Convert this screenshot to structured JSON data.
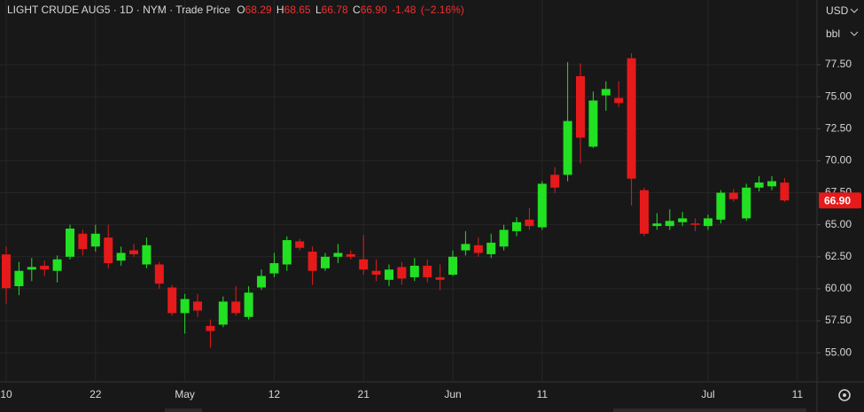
{
  "header": {
    "symbol": "LIGHT CRUDE AUG5 · 1D · NYM · Trade Price",
    "o_label": "O",
    "o_value": "68.29",
    "h_label": "H",
    "h_value": "68.65",
    "l_label": "L",
    "l_value": "66.78",
    "c_label": "C",
    "c_value": "66.90",
    "change": "-1.48",
    "change_pct": "(−2.16%)",
    "currency": "USD",
    "unit": "bbl"
  },
  "chart_data": {
    "type": "candlestick",
    "categories": [
      "10",
      null,
      null,
      null,
      null,
      null,
      null,
      "22",
      null,
      null,
      null,
      null,
      null,
      null,
      "May",
      null,
      null,
      null,
      null,
      null,
      null,
      "12",
      null,
      null,
      null,
      null,
      null,
      null,
      "21",
      null,
      null,
      null,
      null,
      null,
      null,
      "Jun",
      null,
      null,
      null,
      null,
      null,
      null,
      "11",
      null,
      null,
      null,
      null,
      null,
      null,
      null,
      null,
      null,
      null,
      null,
      null,
      "Jul",
      null,
      null,
      null,
      null,
      null,
      null,
      "11"
    ],
    "open": [
      62.68,
      60.2,
      61.5,
      61.8,
      61.4,
      62.5,
      64.3,
      63.3,
      64.0,
      62.2,
      63.0,
      61.9,
      61.9,
      60.1,
      58.1,
      59.0,
      57.1,
      57.2,
      59.0,
      57.8,
      60.1,
      61.2,
      61.9,
      63.7,
      62.9,
      61.6,
      62.5,
      62.7,
      62.3,
      61.4,
      60.7,
      61.7,
      60.9,
      61.8,
      60.9,
      61.1,
      63.0,
      63.4,
      62.7,
      63.3,
      64.5,
      65.4,
      64.8,
      68.9,
      68.9,
      76.6,
      71.1,
      75.1,
      74.9,
      78.0,
      67.7,
      64.9,
      64.9,
      65.2,
      65.1,
      64.9,
      65.4,
      67.5,
      65.5,
      67.9,
      68.0,
      68.29,
      null
    ],
    "high": [
      63.3,
      62.1,
      62.4,
      62.2,
      62.6,
      65.0,
      64.6,
      65.0,
      65.0,
      63.3,
      63.5,
      64.0,
      62.1,
      60.3,
      59.6,
      59.6,
      57.6,
      59.4,
      60.2,
      60.2,
      61.5,
      62.8,
      64.1,
      63.9,
      63.3,
      62.8,
      63.5,
      63.0,
      64.2,
      62.3,
      61.9,
      62.1,
      62.4,
      62.3,
      61.9,
      63.0,
      64.5,
      64.0,
      64.3,
      65.0,
      65.6,
      66.3,
      68.4,
      69.5,
      77.7,
      77.6,
      75.4,
      76.2,
      76.2,
      78.4,
      67.9,
      65.9,
      66.2,
      66.0,
      65.5,
      65.8,
      67.7,
      67.8,
      68.2,
      68.8,
      68.8,
      68.65,
      null
    ],
    "low": [
      58.8,
      59.5,
      60.6,
      61.0,
      60.5,
      62.3,
      62.6,
      62.9,
      61.6,
      61.8,
      62.5,
      61.6,
      60.0,
      57.9,
      56.5,
      57.8,
      55.4,
      57.0,
      57.9,
      57.6,
      59.9,
      60.9,
      61.4,
      63.0,
      60.3,
      61.4,
      62.0,
      62.3,
      61.1,
      60.6,
      60.2,
      60.3,
      60.6,
      60.5,
      59.9,
      61.0,
      62.6,
      62.5,
      62.4,
      63.0,
      64.1,
      64.6,
      64.6,
      67.5,
      68.4,
      69.8,
      71.0,
      73.9,
      74.2,
      66.5,
      64.1,
      64.6,
      64.6,
      64.9,
      64.5,
      64.6,
      65.1,
      66.8,
      65.3,
      67.6,
      67.7,
      66.78,
      null
    ],
    "close": [
      60.05,
      61.4,
      61.7,
      61.5,
      62.3,
      64.7,
      63.1,
      64.3,
      62.0,
      62.8,
      62.7,
      63.4,
      60.4,
      58.1,
      59.2,
      58.3,
      56.7,
      59.0,
      58.1,
      59.7,
      61.0,
      62.0,
      63.8,
      63.2,
      61.4,
      62.5,
      62.8,
      62.5,
      61.5,
      61.1,
      61.5,
      60.8,
      61.8,
      60.9,
      60.7,
      62.5,
      63.5,
      62.8,
      63.6,
      64.6,
      65.2,
      64.9,
      68.2,
      67.9,
      73.1,
      71.8,
      74.7,
      75.6,
      74.5,
      68.6,
      64.3,
      65.1,
      65.3,
      65.5,
      65.0,
      65.5,
      67.5,
      67.0,
      67.9,
      68.3,
      68.4,
      66.9,
      null
    ],
    "up_color": "#22e022",
    "down_color": "#e61a1a",
    "price_tag": {
      "value": 66.9,
      "label": "66.90"
    },
    "ylim": [
      52.8,
      82.55
    ],
    "yticks": [
      {
        "value": 55,
        "label": "55.00"
      },
      {
        "value": 57.5,
        "label": "57.50"
      },
      {
        "value": 60,
        "label": "60.00"
      },
      {
        "value": 62.5,
        "label": "62.50"
      },
      {
        "value": 65,
        "label": "65.00"
      },
      {
        "value": 67.5,
        "label": "67.50"
      },
      {
        "value": 70,
        "label": "70.00"
      },
      {
        "value": 72.5,
        "label": "72.50"
      },
      {
        "value": 75,
        "label": "75.00"
      },
      {
        "value": 77.5,
        "label": "77.50"
      }
    ],
    "grid": true
  }
}
